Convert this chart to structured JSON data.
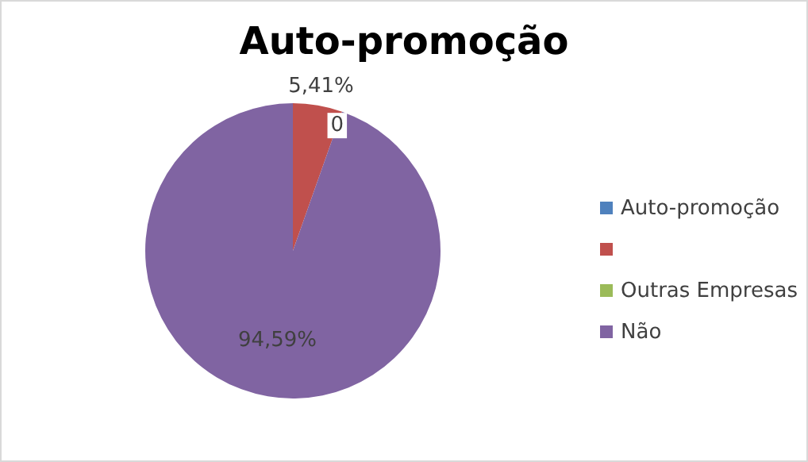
{
  "chart_data": {
    "type": "pie",
    "title": "Auto-promoção",
    "categories": [
      "Auto-promoção",
      null,
      "Outras Empresas",
      "Não"
    ],
    "values": [
      0,
      5.41,
      0,
      94.59
    ],
    "colors": [
      "#4f81bd",
      "#c0504d",
      "#9bbb59",
      "#8064a2"
    ],
    "value_labels": [
      null,
      "5,41%",
      "0",
      "94,59%"
    ],
    "legend": "right"
  }
}
